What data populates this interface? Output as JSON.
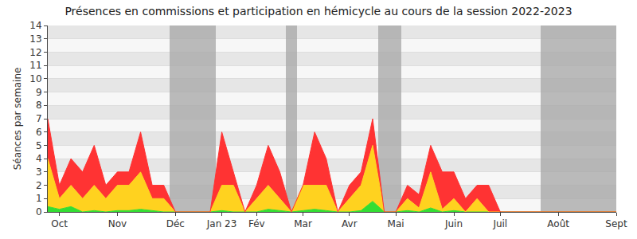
{
  "chart_data": {
    "type": "area",
    "title": "Présences en commissions et participation en hémicycle au cours de la session 2022-2023",
    "y_label": "Séances par semaine",
    "categories": [
      null,
      "Oct",
      null,
      null,
      null,
      null,
      "Nov",
      null,
      null,
      null,
      null,
      "Déc",
      null,
      null,
      null,
      "Jan 23",
      null,
      null,
      "Fév",
      null,
      null,
      null,
      "Mar",
      null,
      null,
      null,
      "Avr",
      null,
      null,
      null,
      "Mai",
      null,
      null,
      null,
      null,
      "Juin",
      null,
      null,
      null,
      "Juil",
      null,
      null,
      null,
      null,
      "Août",
      null,
      null,
      null,
      null,
      "Sept"
    ],
    "series": [
      {
        "type": "area",
        "color": "#33dd33",
        "values": [
          0.4,
          0.2,
          0.4,
          0,
          0.1,
          0,
          0.1,
          0.1,
          0.2,
          0.1,
          0,
          0,
          0,
          0,
          0,
          0.1,
          0,
          0,
          0,
          0.2,
          0.1,
          0,
          0.1,
          0.2,
          0.1,
          0,
          0,
          0.1,
          0.8,
          0,
          0,
          0.1,
          0,
          0.3,
          0,
          0.1,
          0,
          0,
          0,
          0,
          0,
          0,
          0,
          0,
          0,
          0,
          0,
          0,
          0,
          0
        ]
      },
      {
        "type": "area",
        "color": "#ffd21f",
        "values": [
          3.6,
          0.8,
          1.6,
          1,
          1.9,
          1,
          1.9,
          1.9,
          2.8,
          0.9,
          1,
          0,
          0,
          0,
          0,
          1.9,
          2,
          0,
          1,
          1.8,
          0.9,
          0,
          1.9,
          1.8,
          1.9,
          0,
          1,
          1.9,
          4.2,
          0,
          0,
          0.9,
          0.3,
          2.7,
          0.2,
          0.9,
          0,
          1,
          0,
          0,
          0,
          0,
          0,
          0,
          0,
          0,
          0,
          0,
          0,
          0
        ]
      },
      {
        "type": "area",
        "color": "#ff3333",
        "values": [
          3,
          1,
          2,
          2,
          3,
          1,
          1,
          1,
          3,
          1,
          1,
          0,
          0,
          0,
          0,
          4,
          1,
          0,
          1,
          3,
          2,
          0,
          0,
          4,
          2,
          0,
          1,
          1,
          2,
          0,
          0,
          1,
          1,
          2,
          2.8,
          2,
          1,
          1,
          2,
          0,
          0,
          0,
          0,
          0,
          0,
          0,
          0,
          0,
          0,
          0
        ]
      },
      {
        "type": "bar",
        "color": "#aaaaaa",
        "values": [
          0,
          0,
          0,
          0,
          0,
          0,
          0,
          0,
          0,
          0,
          0,
          14,
          14,
          14,
          14,
          0,
          0,
          0,
          0,
          0,
          0,
          14,
          0,
          0,
          0,
          0,
          0,
          0,
          0,
          14,
          14,
          0,
          0,
          0,
          0,
          0,
          0,
          0,
          0,
          0,
          0,
          0,
          0,
          14,
          14,
          14,
          14,
          14,
          14,
          14
        ]
      }
    ],
    "stacked": true,
    "ylim": [
      0,
      14
    ],
    "yticks": [
      0,
      1,
      2,
      3,
      4,
      5,
      6,
      7,
      8,
      9,
      10,
      11,
      12,
      13,
      14
    ],
    "grid": true
  }
}
